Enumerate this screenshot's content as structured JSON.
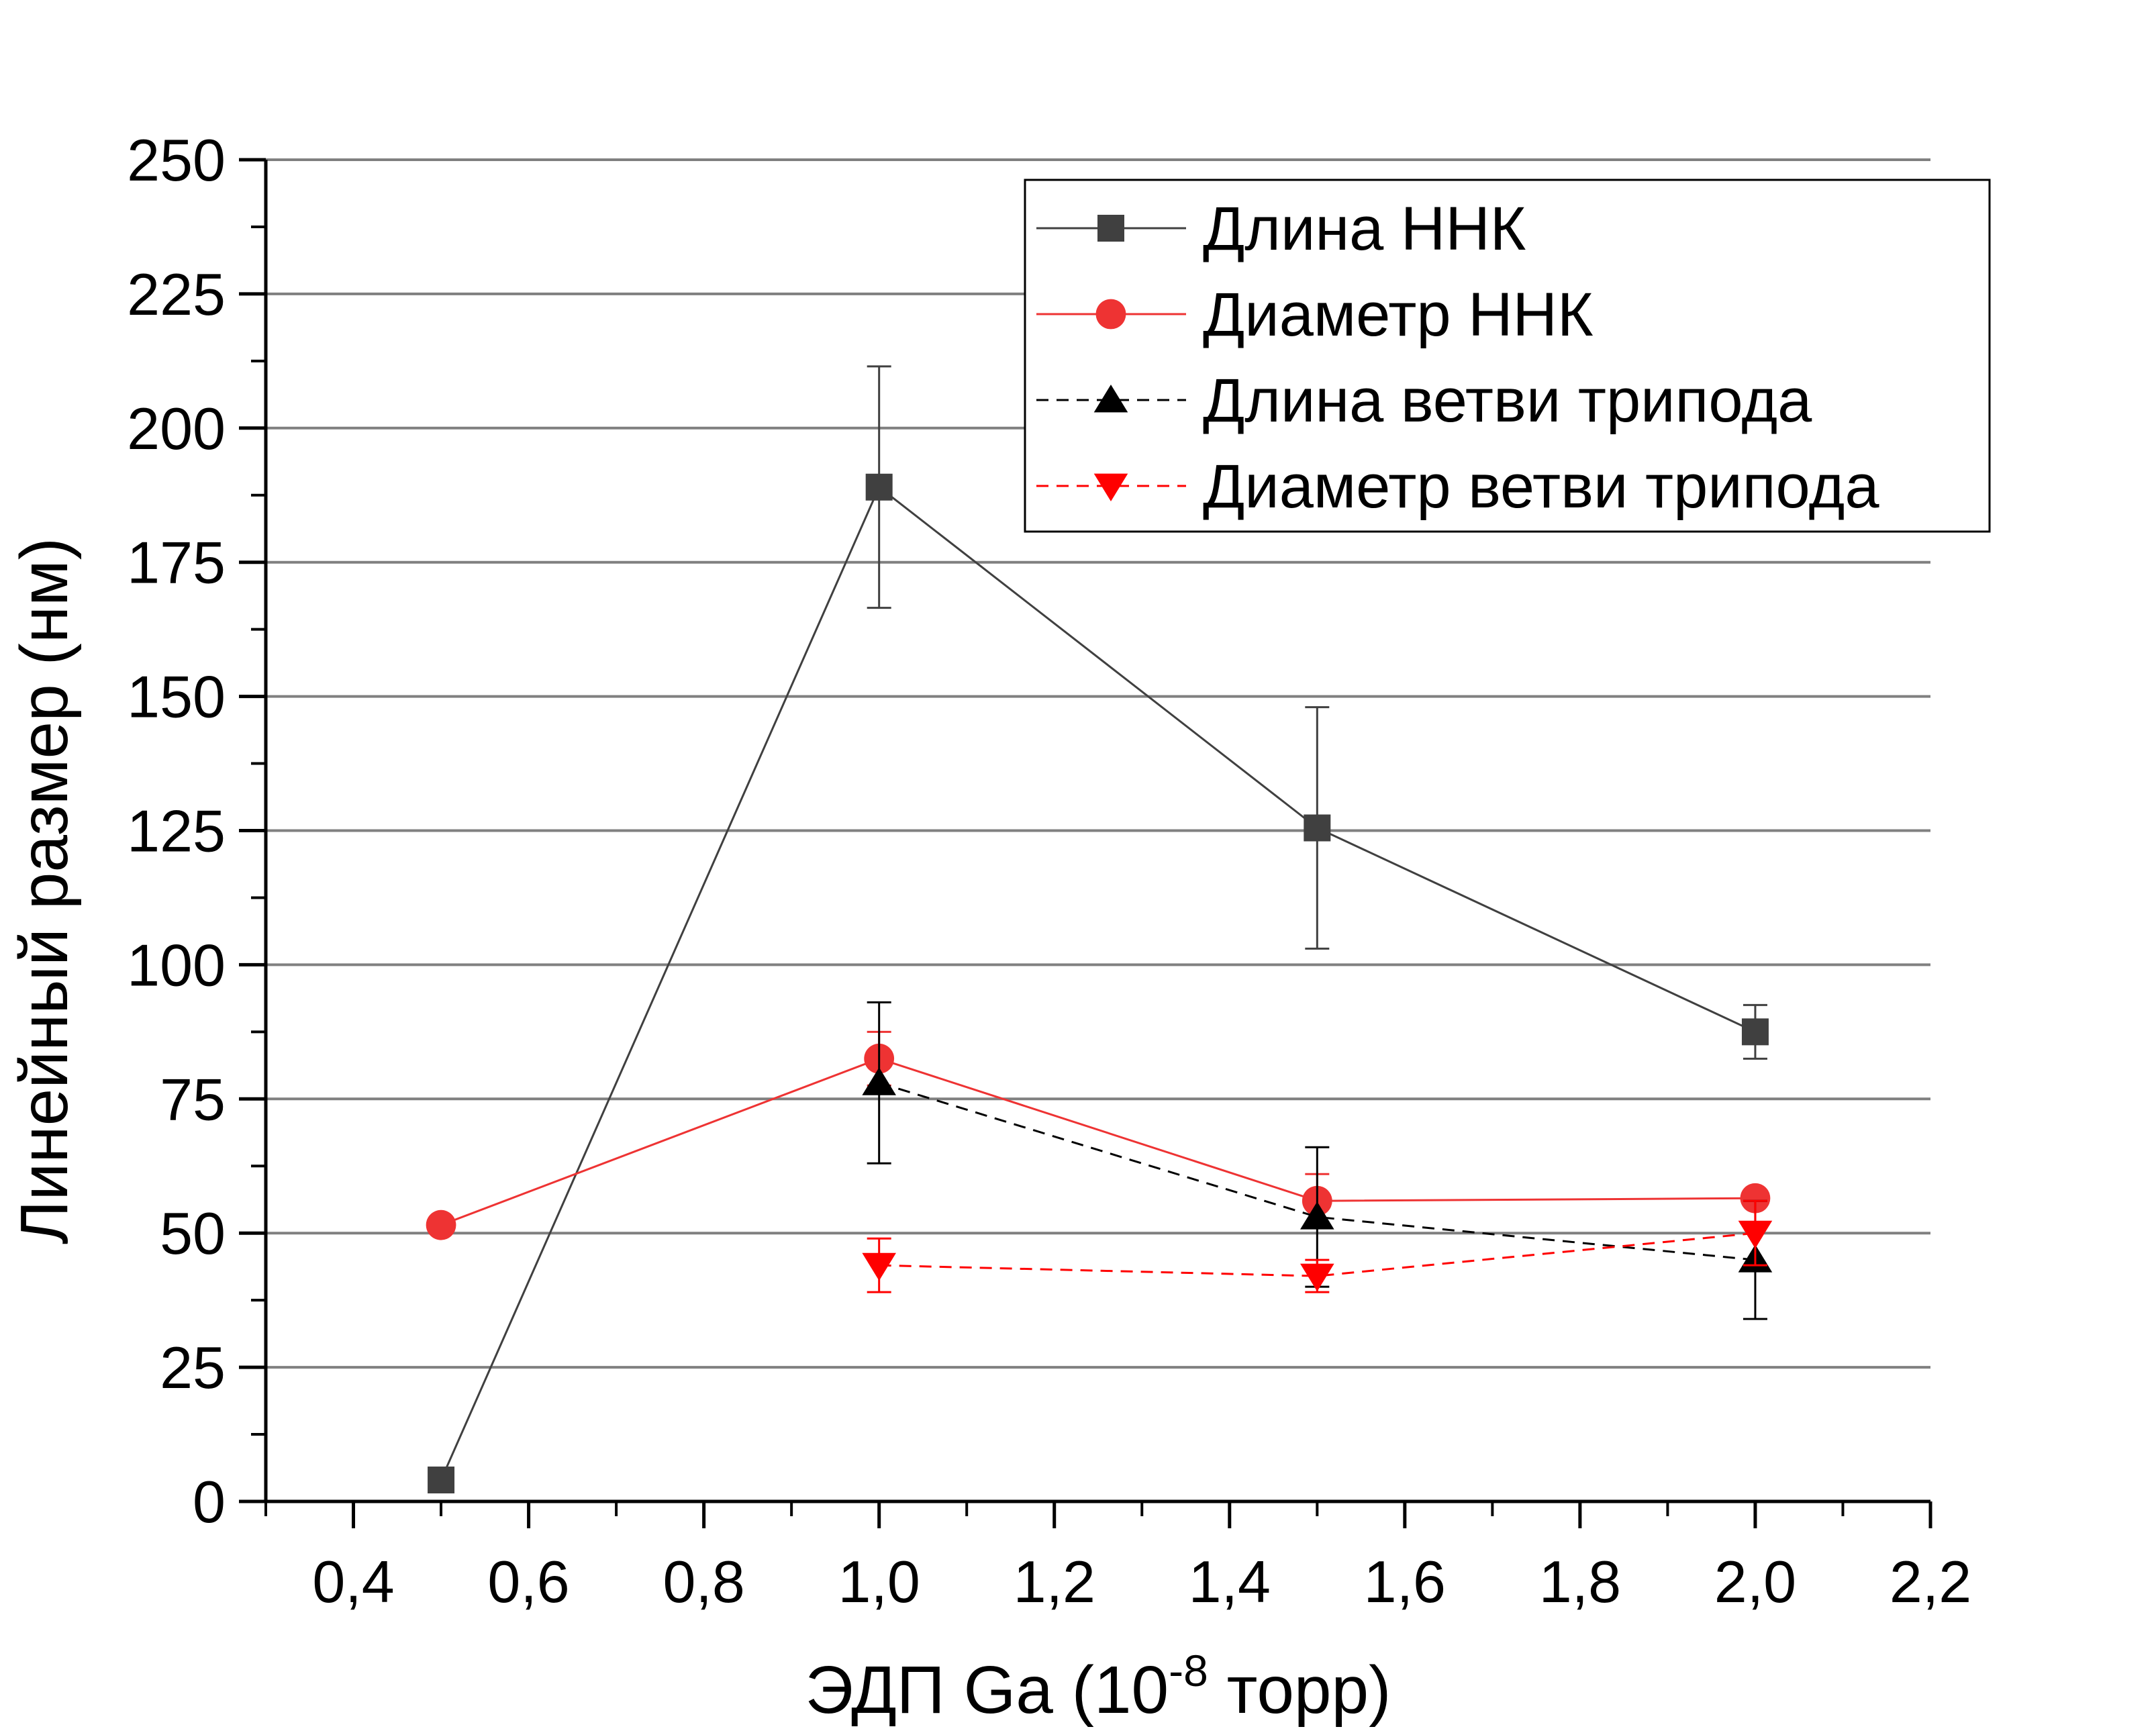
{
  "chart_data": {
    "type": "line",
    "xlabel": "ЭДП Ga (10",
    "xlabel_sup": "-8",
    "xlabel_tail": " торр)",
    "ylabel": "Линейный размер (нм)",
    "xlim": [
      0.3,
      2.2
    ],
    "ylim": [
      0,
      250
    ],
    "x_ticks": [
      "0,4",
      "0,6",
      "0,8",
      "1,0",
      "1,2",
      "1,4",
      "1,6",
      "1,8",
      "2,0",
      "2,2"
    ],
    "y_ticks": [
      "0",
      "25",
      "50",
      "75",
      "100",
      "125",
      "150",
      "175",
      "200",
      "225",
      "250"
    ],
    "grid": "horizontal",
    "legend_position": "top-right",
    "series": [
      {
        "name": "Длина ННК",
        "color": "#404040",
        "marker": "square",
        "line": "solid",
        "x": [
          0.5,
          1.0,
          1.5,
          2.0
        ],
        "y": [
          4,
          189,
          125.5,
          87.5
        ],
        "err": [
          0,
          22.5,
          22.5,
          5
        ]
      },
      {
        "name": "Диаметр ННК",
        "color": "#ee3333",
        "marker": "circle",
        "line": "solid",
        "x": [
          0.5,
          1.0,
          1.5,
          2.0
        ],
        "y": [
          51.5,
          82.5,
          56,
          56.5
        ],
        "err": [
          0,
          5,
          5,
          0
        ]
      },
      {
        "name": "Длина ветви трипода",
        "color": "#000000",
        "marker": "triangle-up",
        "line": "dashed",
        "x": [
          1.0,
          1.5,
          2.0
        ],
        "y": [
          78,
          53,
          45
        ],
        "err": [
          15,
          13,
          11
        ]
      },
      {
        "name": "Диаметр ветви трипода",
        "color": "#ff0000",
        "marker": "triangle-down",
        "line": "dashed",
        "x": [
          1.0,
          1.5,
          2.0
        ],
        "y": [
          44,
          42,
          50
        ],
        "err": [
          5,
          3,
          6
        ]
      }
    ]
  }
}
